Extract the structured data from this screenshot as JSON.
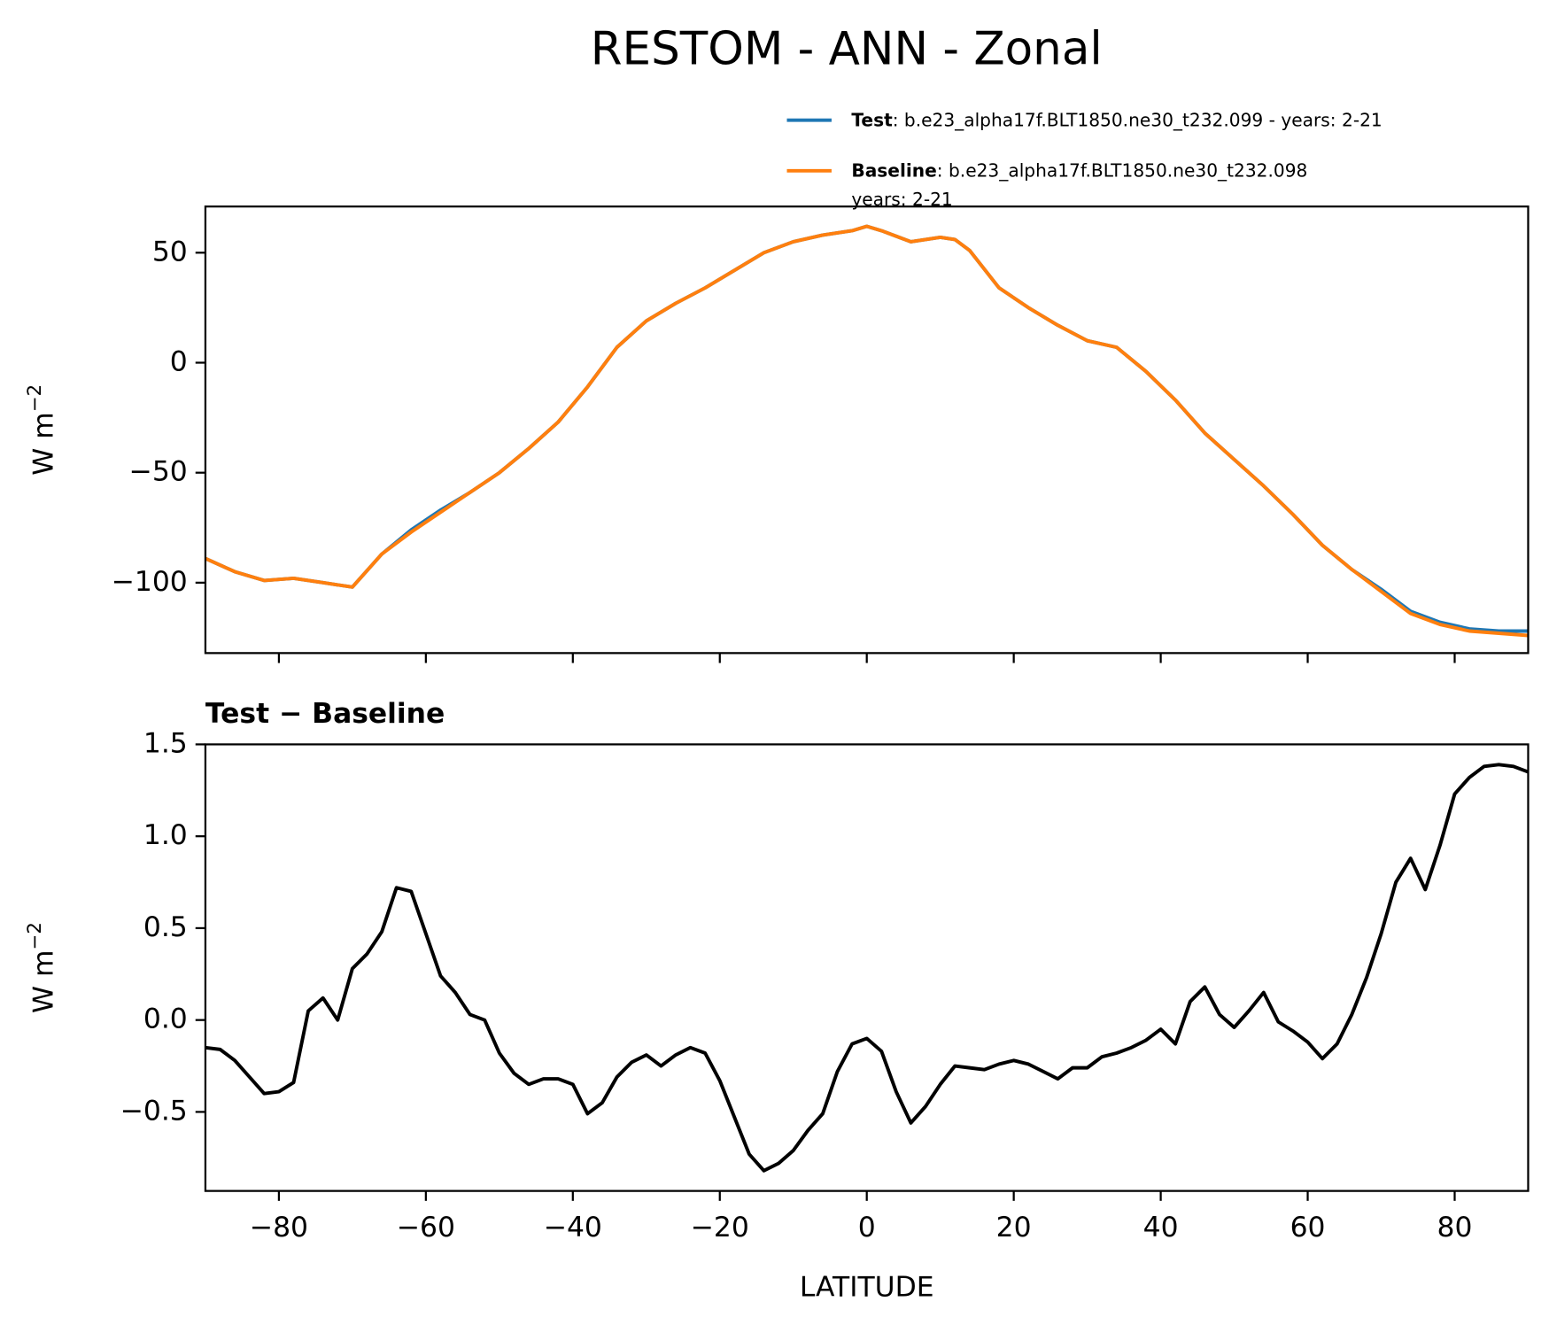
{
  "title": "RESTOM - ANN - Zonal",
  "chart_data": [
    {
      "type": "line",
      "ylabel": "W m",
      "ylabel_exponent": "−2",
      "x": [
        -90,
        -86,
        -82,
        -78,
        -74,
        -70,
        -66,
        -62,
        -58,
        -54,
        -50,
        -46,
        -42,
        -38,
        -34,
        -30,
        -26,
        -22,
        -18,
        -14,
        -10,
        -6,
        -2,
        0,
        2,
        6,
        10,
        12,
        14,
        18,
        22,
        26,
        30,
        34,
        38,
        42,
        46,
        50,
        54,
        58,
        62,
        66,
        70,
        74,
        78,
        82,
        86,
        90
      ],
      "series": [
        {
          "name": "Test",
          "label_lines": [
            ": b.e23_alpha17f.BLT1850.ne30_t232.099 - years: 2-21"
          ],
          "color": "#1f77b4",
          "values": [
            -89,
            -95,
            -99,
            -98,
            -100,
            -102,
            -87,
            -76,
            -67,
            -59,
            -50,
            -39,
            -27,
            -11,
            7,
            19,
            27,
            34,
            42,
            50,
            55,
            58,
            60,
            62,
            60,
            55,
            57,
            56,
            51,
            34,
            25,
            17,
            10,
            7,
            -4,
            -17,
            -32,
            -44,
            -56,
            -69,
            -83,
            -94,
            -103,
            -113,
            -118,
            -121,
            -122,
            -122
          ]
        },
        {
          "name": "Baseline",
          "label_lines": [
            ": b.e23_alpha17f.BLT1850.ne30_t232.098",
            "years: 2-21"
          ],
          "color": "#ff7f0e",
          "values": [
            -89,
            -95,
            -99,
            -98,
            -100,
            -102,
            -87,
            -77,
            -68,
            -59,
            -50,
            -39,
            -27,
            -11,
            7,
            19,
            27,
            34,
            42,
            50,
            55,
            58,
            60,
            62,
            60,
            55,
            57,
            56,
            51,
            34,
            25,
            17,
            10,
            7,
            -4,
            -17,
            -32,
            -44,
            -56,
            -69,
            -83,
            -94,
            -104,
            -114,
            -119,
            -122,
            -123,
            -124
          ]
        }
      ],
      "xlim": [
        -90,
        90
      ],
      "ylim": [
        -132,
        71
      ],
      "xticks": [
        -80,
        -60,
        -40,
        -20,
        0,
        20,
        40,
        60,
        80
      ],
      "yticks": [
        {
          "value": -100,
          "label": "−100"
        },
        {
          "value": -50,
          "label": "−50"
        },
        0,
        50
      ]
    },
    {
      "type": "line",
      "title": "Test − Baseline",
      "ylabel": "W m",
      "ylabel_exponent": "−2",
      "xlabel": "LATITUDE",
      "x": [
        -90,
        -88,
        -86,
        -84,
        -82,
        -80,
        -78,
        -76,
        -74,
        -72,
        -70,
        -68,
        -66,
        -64,
        -62,
        -60,
        -58,
        -56,
        -54,
        -52,
        -50,
        -48,
        -46,
        -44,
        -42,
        -40,
        -38,
        -36,
        -34,
        -32,
        -30,
        -28,
        -26,
        -24,
        -22,
        -20,
        -18,
        -16,
        -14,
        -12,
        -10,
        -8,
        -6,
        -4,
        -2,
        0,
        2,
        4,
        6,
        8,
        10,
        12,
        14,
        16,
        18,
        20,
        22,
        24,
        26,
        28,
        30,
        32,
        34,
        36,
        38,
        40,
        42,
        44,
        46,
        48,
        50,
        52,
        54,
        56,
        58,
        60,
        62,
        64,
        66,
        68,
        70,
        72,
        74,
        76,
        78,
        80,
        82,
        84,
        86,
        88,
        90
      ],
      "series": [
        {
          "name": "Test − Baseline",
          "color": "#000000",
          "values": [
            -0.15,
            -0.16,
            -0.22,
            -0.31,
            -0.4,
            -0.39,
            -0.34,
            0.05,
            0.12,
            0.0,
            0.28,
            0.36,
            0.48,
            0.72,
            0.7,
            0.47,
            0.24,
            0.15,
            0.03,
            0.0,
            -0.18,
            -0.29,
            -0.35,
            -0.32,
            -0.32,
            -0.35,
            -0.51,
            -0.45,
            -0.31,
            -0.23,
            -0.19,
            -0.25,
            -0.19,
            -0.15,
            -0.18,
            -0.33,
            -0.53,
            -0.73,
            -0.82,
            -0.78,
            -0.71,
            -0.6,
            -0.51,
            -0.28,
            -0.13,
            -0.1,
            -0.17,
            -0.39,
            -0.56,
            -0.47,
            -0.35,
            -0.25,
            -0.26,
            -0.27,
            -0.24,
            -0.22,
            -0.24,
            -0.28,
            -0.32,
            -0.26,
            -0.26,
            -0.2,
            -0.18,
            -0.15,
            -0.11,
            -0.05,
            -0.13,
            0.1,
            0.18,
            0.03,
            -0.04,
            0.05,
            0.15,
            -0.01,
            -0.06,
            -0.12,
            -0.21,
            -0.13,
            0.03,
            0.23,
            0.47,
            0.75,
            0.88,
            0.71,
            0.95,
            1.23,
            1.32,
            1.38,
            1.39,
            1.38,
            1.35
          ]
        }
      ],
      "xlim": [
        -90,
        90
      ],
      "ylim": [
        -0.93,
        1.5
      ],
      "xticks": [
        {
          "value": -80,
          "label": "−80"
        },
        {
          "value": -60,
          "label": "−60"
        },
        {
          "value": -40,
          "label": "−40"
        },
        {
          "value": -20,
          "label": "−20"
        },
        0,
        20,
        40,
        60,
        80
      ],
      "yticks": [
        {
          "value": -0.5,
          "label": "−0.5"
        },
        {
          "value": 0,
          "label": "0.0"
        },
        0.5,
        {
          "value": 1,
          "label": "1.0"
        },
        1.5
      ]
    }
  ]
}
